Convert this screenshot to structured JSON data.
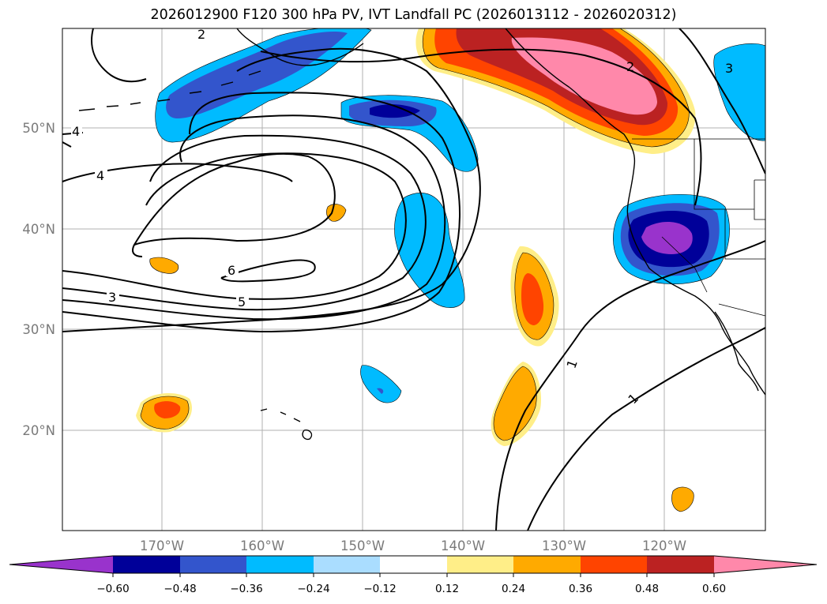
{
  "title": "2026012900 F120 300 hPa PV, IVT Landfall PC (2026013112 - 2026020312)",
  "map": {
    "lat_labels": [
      "50°N",
      "40°N",
      "30°N",
      "20°N"
    ],
    "lon_labels": [
      "170°W",
      "160°W",
      "150°W",
      "140°W",
      "130°W",
      "120°W"
    ],
    "contour_labels": [
      "2",
      "4",
      "4",
      "6",
      "5",
      "3",
      "3",
      "2",
      "1",
      "1"
    ]
  },
  "colorbar": {
    "ticks": [
      "−0.60",
      "−0.48",
      "−0.36",
      "−0.24",
      "−0.12",
      "0.12",
      "0.24",
      "0.36",
      "0.48",
      "0.60"
    ],
    "colors": [
      "#9933cc",
      "#000099",
      "#3355cc",
      "#00bbff",
      "#aaddff",
      "#ffffff",
      "#ffee88",
      "#ffaa00",
      "#ff4400",
      "#bb2222",
      "#ff88aa"
    ]
  }
}
